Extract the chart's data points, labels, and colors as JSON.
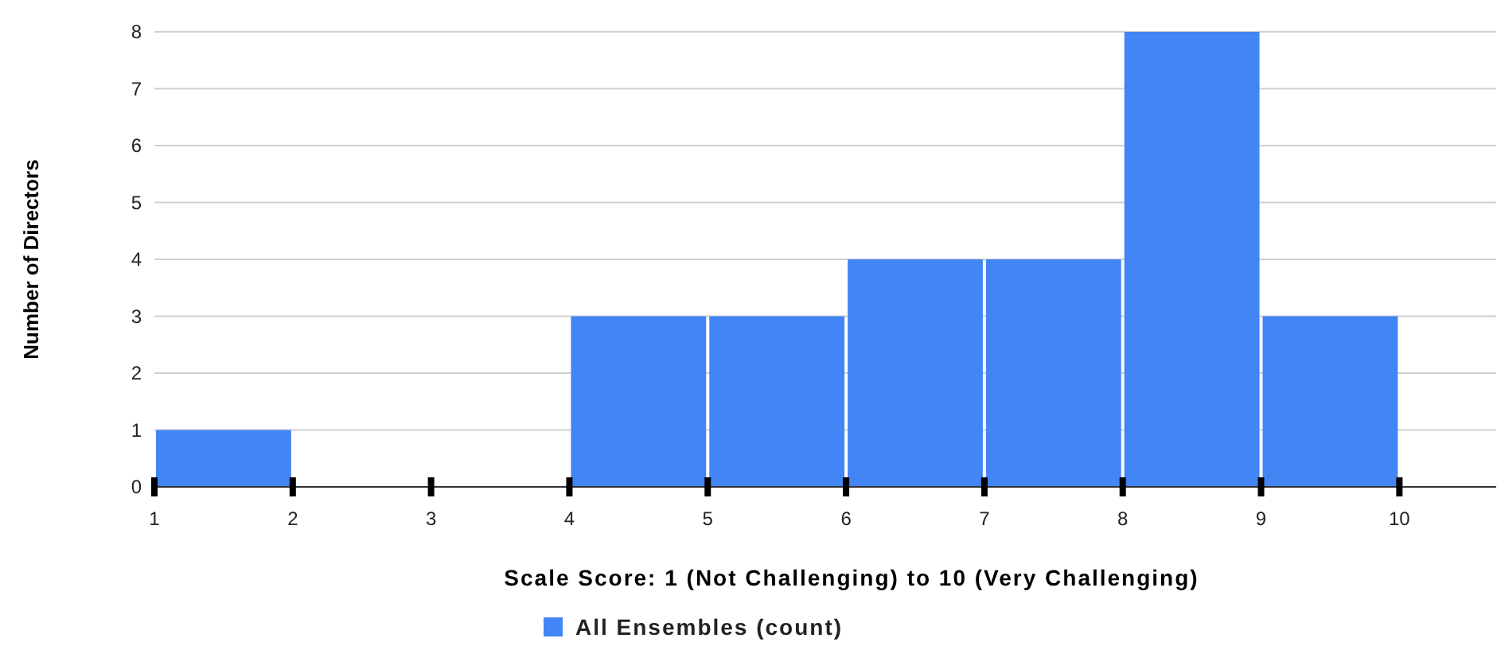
{
  "chart_data": {
    "type": "histogram",
    "xlabel": "Scale Score: 1 (Not Challenging) to 10 (Very Challenging)",
    "ylabel": "Number of Directors",
    "bins": [
      1,
      2,
      3,
      4,
      5,
      6,
      7,
      8,
      9,
      10
    ],
    "series": [
      {
        "name": "All Ensembles (count)",
        "color": "#4285f4",
        "values": [
          1,
          0,
          0,
          3,
          3,
          4,
          4,
          8,
          3
        ]
      }
    ],
    "xlim": [
      1,
      10.7
    ],
    "xticks": [
      1,
      2,
      3,
      4,
      5,
      6,
      7,
      8,
      9,
      10
    ],
    "ylim": [
      0,
      8
    ],
    "yticks": [
      0,
      1,
      2,
      3,
      4,
      5,
      6,
      7,
      8
    ],
    "grid": "y",
    "legend": "bottom"
  }
}
